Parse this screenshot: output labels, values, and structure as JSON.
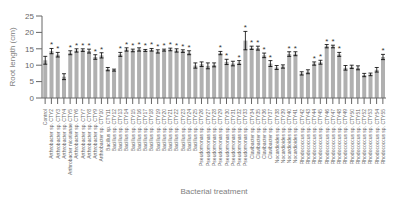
{
  "chart_data": {
    "type": "bar",
    "xlabel": "Bacterial treatment",
    "ylabel": "Root length (cm)",
    "categories": [
      "Control",
      "Arthrobacter sp. CTY2",
      "Arthrobacter sp. CTY3",
      "Arthrobacter sp. CTY4",
      "Arthrobacter nicotianae CTY5",
      "Arthrobacter sp. CTY6",
      "Arthrobacter sp. CTY7",
      "Arthrobacter sp. CTY8",
      "Arthrobacter sp. CTY9",
      "Arthrobacter sp. CTY10",
      "Bacillus sp. CTY11",
      "Bacillus sp. CTY12",
      "Bacillus sp. CTY13",
      "Bacillus sp. CTY14",
      "Bacillus sp. CTY15",
      "Bacillus sp. CTY16",
      "Bacillus sp. CTY17",
      "Bacillus sp. CTY18",
      "Bacillus sp. CTY19",
      "Bacillus sp. CTY20",
      "Bacillus sp. CTY21",
      "Bacillus sp. CTY22",
      "Bacillus sp. CTY23",
      "Bacillus sp. CTY24",
      "Bacillus sp. CTY25",
      "Pseudomonas sp. CTY26",
      "Pseudomonas sp. CTY27",
      "Pseudomonas sp. CTY28",
      "Pseudomonas sp. CTY29",
      "Pseudomonas sp. CTY30",
      "Pseudomonas sp. CTY31",
      "Pseudomonas sp. CTY32",
      "Pseudomonas sp. CTY33",
      "Clavibacter sp. CTY34",
      "Clavibacter sp. CTY35",
      "Clavibacter sp. CTY36",
      "Clavibacter sp. CTY37",
      "Nocardioides sp. CTY38",
      "Nocardioides sp. CTY39",
      "Nocardioides sp. CTY40",
      "Nocardioides sp. CTY41",
      "Rhodococcus sp. CTY42",
      "Rhodococcus sp. CTY43",
      "Rhodococcus sp. CTY44",
      "Rhodococcus sp. CTY45",
      "Rhodococcus sp. CTY46",
      "Rhodococcus sp. CTY47",
      "Rhodococcus sp. CTY48",
      "Rhodococcus sp. CTY49",
      "Rhodococcus sp. CTY50",
      "Rhodococcus sp. CTY51",
      "Rhodococcus sp. CTY52",
      "Rhodococcus sp. CTY53",
      "Rhodococcus sp. CTY54",
      "Rhodococcus sp. CTY55"
    ],
    "values": [
      11.5,
      14.3,
      13.2,
      6.5,
      13.8,
      14.5,
      14.6,
      14.3,
      12.5,
      13.0,
      8.8,
      8.5,
      13.3,
      14.8,
      14.5,
      14.8,
      14.5,
      14.7,
      14.2,
      14.6,
      14.8,
      14.5,
      14.3,
      13.8,
      9.9,
      10.3,
      9.8,
      10.1,
      13.7,
      11.0,
      10.5,
      10.8,
      17.5,
      15.3,
      15.2,
      13.0,
      10.5,
      9.3,
      9.6,
      13.4,
      13.5,
      7.5,
      8.0,
      10.5,
      10.9,
      15.8,
      15.7,
      13.3,
      9.2,
      9.5,
      9.2,
      7.0,
      7.2,
      8.6,
      12.5
    ],
    "errors": [
      1.2,
      0.8,
      0.7,
      0.9,
      0.6,
      0.5,
      0.4,
      0.6,
      0.7,
      0.8,
      0.5,
      0.3,
      0.6,
      0.5,
      0.4,
      0.5,
      0.3,
      0.4,
      0.5,
      0.3,
      0.4,
      0.5,
      0.4,
      0.6,
      0.8,
      0.7,
      0.9,
      0.6,
      0.5,
      0.8,
      0.7,
      0.6,
      2.8,
      0.5,
      0.6,
      0.7,
      0.9,
      0.6,
      0.5,
      0.7,
      0.6,
      0.5,
      0.6,
      0.5,
      0.6,
      0.5,
      0.4,
      0.6,
      0.7,
      0.5,
      0.6,
      0.5,
      0.4,
      0.7,
      0.8
    ],
    "annotations": [
      {
        "category": "Arthrobacter sp. CTY2",
        "text": "*"
      },
      {
        "category": "Arthrobacter sp. CTY3",
        "text": "*"
      },
      {
        "category": "Arthrobacter nicotianae CTY5",
        "text": "*"
      },
      {
        "category": "Arthrobacter sp. CTY6",
        "text": "*"
      },
      {
        "category": "Arthrobacter sp. CTY7",
        "text": "*"
      },
      {
        "category": "Arthrobacter sp. CTY8",
        "text": "*"
      },
      {
        "category": "Arthrobacter sp. CTY9",
        "text": "*"
      },
      {
        "category": "Arthrobacter sp. CTY10",
        "text": "*"
      },
      {
        "category": "Bacillus sp. CTY13",
        "text": "*"
      },
      {
        "category": "Bacillus sp. CTY14",
        "text": "*"
      },
      {
        "category": "Bacillus sp. CTY15",
        "text": "*"
      },
      {
        "category": "Bacillus sp. CTY16",
        "text": "*"
      },
      {
        "category": "Bacillus sp. CTY17",
        "text": "*"
      },
      {
        "category": "Bacillus sp. CTY18",
        "text": "*"
      },
      {
        "category": "Bacillus sp. CTY19",
        "text": "*"
      },
      {
        "category": "Bacillus sp. CTY20",
        "text": "*"
      },
      {
        "category": "Bacillus sp. CTY21",
        "text": "*"
      },
      {
        "category": "Bacillus sp. CTY22",
        "text": "*"
      },
      {
        "category": "Bacillus sp. CTY23",
        "text": "*"
      },
      {
        "category": "Bacillus sp. CTY24",
        "text": "*"
      },
      {
        "category": "Pseudomonas sp. CTY29",
        "text": "*"
      },
      {
        "category": "Pseudomonas sp. CTY30",
        "text": "*"
      },
      {
        "category": "Pseudomonas sp. CTY32",
        "text": "*"
      },
      {
        "category": "Pseudomonas sp. CTY33",
        "text": "*"
      },
      {
        "category": "Clavibacter sp. CTY34",
        "text": "*"
      },
      {
        "category": "Clavibacter sp. CTY35",
        "text": "*"
      },
      {
        "category": "Clavibacter sp. CTY36",
        "text": "*"
      },
      {
        "category": "Clavibacter sp. CTY37",
        "text": "*"
      },
      {
        "category": "Nocardioides sp. CTY40",
        "text": "*"
      },
      {
        "category": "Nocardioides sp. CTY41",
        "text": "*"
      },
      {
        "category": "Rhodococcus sp. CTY44",
        "text": "*"
      },
      {
        "category": "Rhodococcus sp. CTY45",
        "text": "*"
      },
      {
        "category": "Rhodococcus sp. CTY46",
        "text": "*"
      },
      {
        "category": "Rhodococcus sp. CTY47",
        "text": "*"
      },
      {
        "category": "Rhodococcus sp. CTY48",
        "text": "*"
      },
      {
        "category": "Rhodococcus sp. CTY55",
        "text": "*"
      }
    ],
    "color": "#b0b0b0",
    "ylim": [
      0,
      25
    ],
    "yticks": [
      0,
      5,
      10,
      15,
      20,
      25
    ],
    "grid": false
  }
}
